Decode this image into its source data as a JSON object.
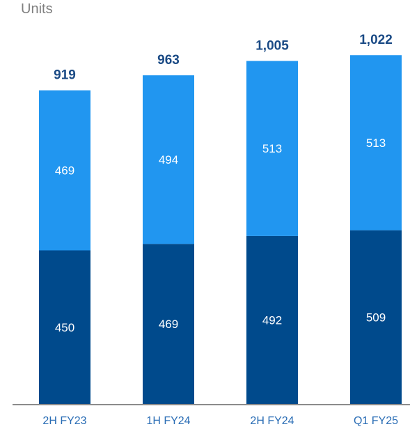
{
  "chart_data": {
    "type": "bar",
    "stacked": true,
    "unit_label": "Units",
    "categories": [
      "2H FY23",
      "1H FY24",
      "2H FY24",
      "Q1 FY25"
    ],
    "series": [
      {
        "values": [
          450,
          469,
          492,
          509
        ],
        "color": "#004a8c"
      },
      {
        "values": [
          469,
          494,
          513,
          513
        ],
        "color": "#2196f0"
      }
    ],
    "totals": [
      "919",
      "963",
      "1,005",
      "1,022"
    ],
    "ylim": [
      0,
      1100
    ],
    "colors": {
      "total_text": "#1a4a85",
      "tick_text": "#2a6db5",
      "axis": "#8c8c8c"
    }
  }
}
